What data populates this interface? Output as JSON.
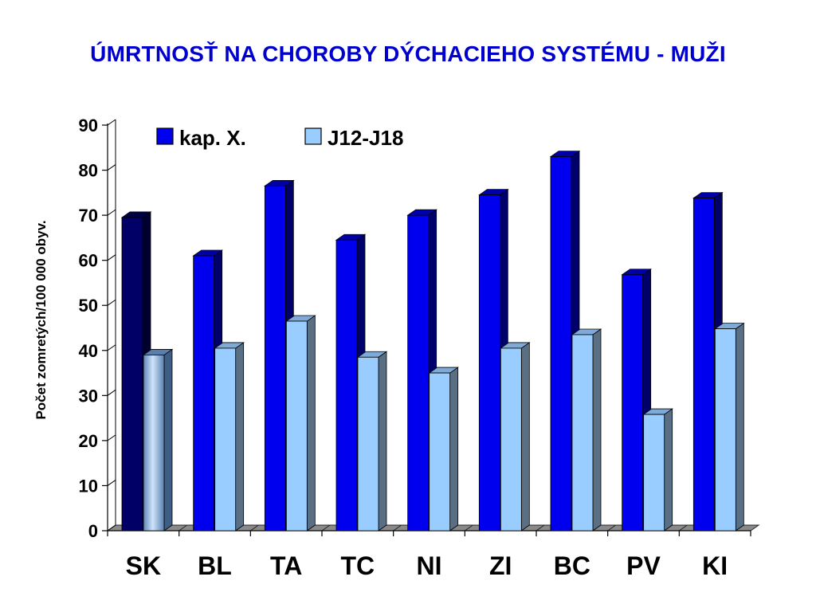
{
  "chart_data": {
    "type": "bar",
    "title": "ÚMRTNOSŤ NA CHOROBY DÝCHACIEHO SYSTÉMU - MUŽI",
    "xlabel": "",
    "ylabel": "Počet zomretých/100 000 obyv.",
    "ylim": [
      0,
      90
    ],
    "yticks": [
      0,
      10,
      20,
      30,
      40,
      50,
      60,
      70,
      80,
      90
    ],
    "categories": [
      "SK",
      "BL",
      "TA",
      "TC",
      "NI",
      "ZI",
      "BC",
      "PV",
      "KI"
    ],
    "series": [
      {
        "name": "kap. X.",
        "color": "#0000ee",
        "highlight_color": "#000066",
        "values": [
          69.5,
          61,
          76.5,
          64.5,
          70,
          74.5,
          83,
          56.8,
          73.8
        ]
      },
      {
        "name": "J12-J18",
        "color": "#99ccff",
        "highlight_color": "#6699cc",
        "values": [
          39,
          40.5,
          46.5,
          38.5,
          35,
          40.5,
          43.5,
          25.8,
          44.8
        ]
      }
    ],
    "highlighted_category": "SK",
    "legend_position": "top",
    "grid": false,
    "style": "3d"
  }
}
